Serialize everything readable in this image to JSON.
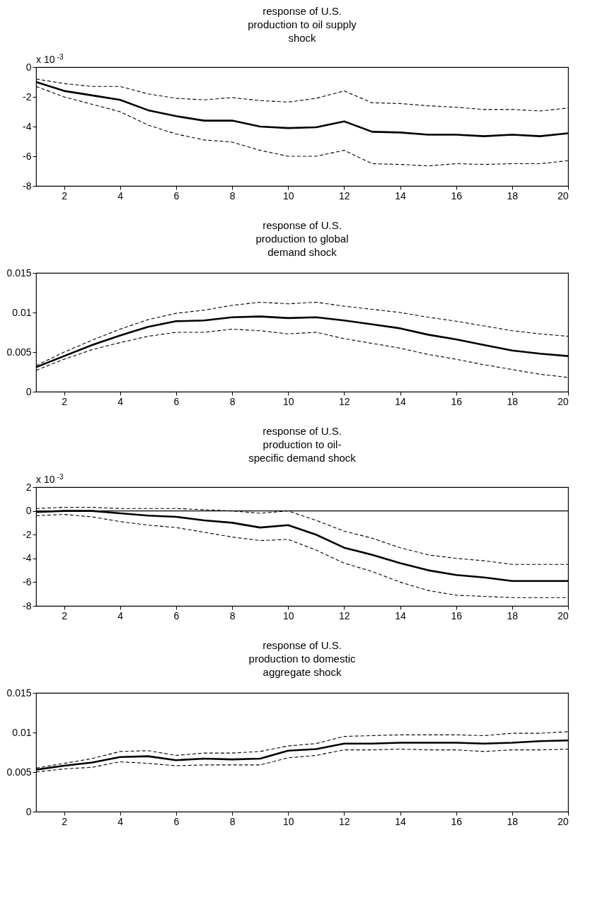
{
  "chart_data": [
    {
      "type": "line",
      "title": "response of U.S. production to oil supply shock",
      "x": [
        1,
        2,
        3,
        4,
        5,
        6,
        7,
        8,
        9,
        10,
        11,
        12,
        13,
        14,
        15,
        16,
        17,
        18,
        19,
        20
      ],
      "xlim": [
        1,
        20
      ],
      "xticks": [
        2,
        4,
        6,
        8,
        10,
        12,
        14,
        16,
        18,
        20
      ],
      "ylim": [
        -8,
        0
      ],
      "yticks": [
        -8,
        -6,
        -4,
        -2,
        0
      ],
      "grid": false,
      "annotations": [
        "x 10$^{-3}$"
      ],
      "series": [
        {
          "color": "#000000",
          "line_style": "solid",
          "values": [
            -1.0,
            -1.6,
            -1.9,
            -2.2,
            -2.9,
            -3.3,
            -3.6,
            -3.6,
            -4.0,
            -4.1,
            -4.05,
            -3.65,
            -4.35,
            -4.4,
            -4.55,
            -4.55,
            -4.65,
            -4.55,
            -4.65,
            -4.45
          ]
        },
        {
          "color": "#000000",
          "line_style": "dashed",
          "values": [
            -0.8,
            -1.1,
            -1.3,
            -1.3,
            -1.8,
            -2.1,
            -2.2,
            -2.05,
            -2.25,
            -2.35,
            -2.1,
            -1.6,
            -2.4,
            -2.45,
            -2.6,
            -2.7,
            -2.85,
            -2.85,
            -2.95,
            -2.75
          ]
        },
        {
          "color": "#000000",
          "line_style": "dashed",
          "values": [
            -1.3,
            -2.0,
            -2.5,
            -3.0,
            -3.9,
            -4.5,
            -4.9,
            -5.05,
            -5.6,
            -6.0,
            -6.0,
            -5.6,
            -6.5,
            -6.55,
            -6.65,
            -6.5,
            -6.55,
            -6.5,
            -6.5,
            -6.3
          ]
        }
      ]
    },
    {
      "type": "line",
      "title": "response of  U.S. production to global demand shock",
      "x": [
        1,
        2,
        3,
        4,
        5,
        6,
        7,
        8,
        9,
        10,
        11,
        12,
        13,
        14,
        15,
        16,
        17,
        18,
        19,
        20
      ],
      "xlim": [
        1,
        20
      ],
      "xticks": [
        2,
        4,
        6,
        8,
        10,
        12,
        14,
        16,
        18,
        20
      ],
      "ylim": [
        0,
        0.015
      ],
      "yticks": [
        0,
        0.005,
        0.01,
        0.015
      ],
      "grid": false,
      "series": [
        {
          "color": "#000000",
          "line_style": "solid",
          "values": [
            0.0031,
            0.0045,
            0.0059,
            0.0071,
            0.0082,
            0.0089,
            0.009,
            0.0094,
            0.0095,
            0.0093,
            0.0094,
            0.009,
            0.0085,
            0.008,
            0.0072,
            0.0066,
            0.0059,
            0.0052,
            0.0048,
            0.0045
          ]
        },
        {
          "color": "#000000",
          "line_style": "dashed",
          "values": [
            0.0033,
            0.005,
            0.0065,
            0.0079,
            0.0091,
            0.0099,
            0.0103,
            0.0109,
            0.0113,
            0.0111,
            0.0113,
            0.0108,
            0.0104,
            0.01,
            0.0094,
            0.0089,
            0.0083,
            0.0077,
            0.0073,
            0.007
          ]
        },
        {
          "color": "#000000",
          "line_style": "dashed",
          "values": [
            0.0027,
            0.0041,
            0.0053,
            0.0062,
            0.007,
            0.0075,
            0.0075,
            0.0079,
            0.0077,
            0.0073,
            0.0075,
            0.0067,
            0.0061,
            0.0055,
            0.0047,
            0.0041,
            0.0034,
            0.0028,
            0.0022,
            0.0018
          ]
        }
      ]
    },
    {
      "type": "line",
      "title": "response of  U.S. production to oil-specific demand shock",
      "x": [
        1,
        2,
        3,
        4,
        5,
        6,
        7,
        8,
        9,
        10,
        11,
        12,
        13,
        14,
        15,
        16,
        17,
        18,
        19,
        20
      ],
      "xlim": [
        1,
        20
      ],
      "xticks": [
        2,
        4,
        6,
        8,
        10,
        12,
        14,
        16,
        18,
        20
      ],
      "ylim": [
        -8,
        2
      ],
      "yticks": [
        -8,
        -6,
        -4,
        -2,
        0,
        2
      ],
      "grid": false,
      "annotations": [
        "x 10$^{-3}$"
      ],
      "ref_lines": [
        {
          "axis": "y",
          "value": 0,
          "color": "#000000"
        }
      ],
      "series": [
        {
          "color": "#000000",
          "line_style": "solid",
          "values": [
            -0.1,
            0,
            0,
            -0.2,
            -0.4,
            -0.5,
            -0.8,
            -1.0,
            -1.4,
            -1.2,
            -2.0,
            -3.1,
            -3.7,
            -4.4,
            -5.0,
            -5.4,
            -5.6,
            -5.9,
            -5.9,
            -5.9
          ]
        },
        {
          "color": "#000000",
          "line_style": "dashed",
          "values": [
            0.2,
            0.3,
            0.3,
            0.2,
            0.2,
            0.2,
            0.1,
            0,
            -0.2,
            0,
            -0.8,
            -1.7,
            -2.3,
            -3.1,
            -3.7,
            -4.0,
            -4.2,
            -4.5,
            -4.5,
            -4.5
          ]
        },
        {
          "color": "#000000",
          "line_style": "dashed",
          "values": [
            -0.4,
            -0.3,
            -0.5,
            -0.9,
            -1.2,
            -1.4,
            -1.8,
            -2.2,
            -2.5,
            -2.4,
            -3.3,
            -4.4,
            -5.1,
            -6.0,
            -6.7,
            -7.1,
            -7.2,
            -7.3,
            -7.3,
            -7.3
          ]
        }
      ]
    },
    {
      "type": "line",
      "title": "response of U.S. production to domestic aggregate shock",
      "x": [
        1,
        2,
        3,
        4,
        5,
        6,
        7,
        8,
        9,
        10,
        11,
        12,
        13,
        14,
        15,
        16,
        17,
        18,
        19,
        20
      ],
      "xlim": [
        1,
        20
      ],
      "xticks": [
        2,
        4,
        6,
        8,
        10,
        12,
        14,
        16,
        18,
        20
      ],
      "ylim": [
        0,
        0.015
      ],
      "yticks": [
        0,
        0.005,
        0.01,
        0.015
      ],
      "grid": false,
      "series": [
        {
          "color": "#000000",
          "line_style": "solid",
          "values": [
            0.0053,
            0.0058,
            0.0062,
            0.0069,
            0.007,
            0.0065,
            0.0067,
            0.0066,
            0.0067,
            0.0077,
            0.0079,
            0.0086,
            0.0086,
            0.0087,
            0.0087,
            0.0087,
            0.0086,
            0.0087,
            0.0089,
            0.009
          ]
        },
        {
          "color": "#000000",
          "line_style": "dashed",
          "values": [
            0.0055,
            0.0061,
            0.0067,
            0.0076,
            0.0077,
            0.0071,
            0.0074,
            0.0074,
            0.0076,
            0.0083,
            0.0086,
            0.0095,
            0.0096,
            0.0097,
            0.0097,
            0.0097,
            0.0096,
            0.0099,
            0.0099,
            0.0101
          ]
        },
        {
          "color": "#000000",
          "line_style": "dashed",
          "values": [
            0.005,
            0.0054,
            0.0056,
            0.0063,
            0.0061,
            0.0058,
            0.0059,
            0.0059,
            0.0059,
            0.0068,
            0.0071,
            0.0078,
            0.0078,
            0.0079,
            0.0078,
            0.0078,
            0.0076,
            0.0078,
            0.0078,
            0.0079
          ]
        }
      ]
    }
  ]
}
